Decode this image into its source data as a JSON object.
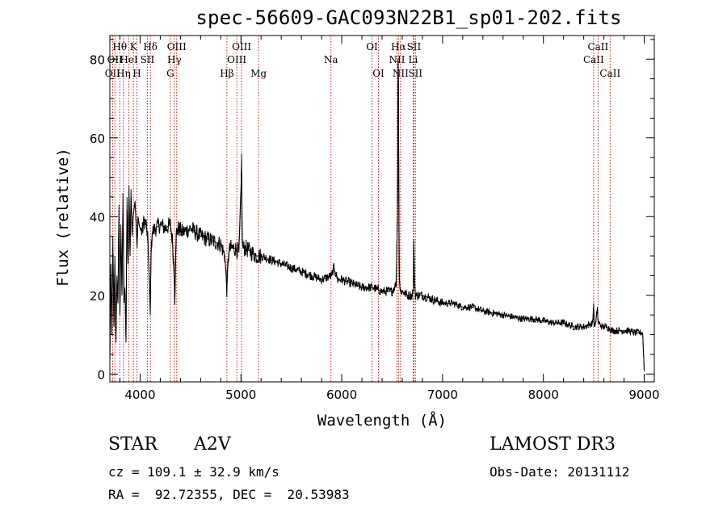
{
  "chart_data": {
    "type": "line",
    "title": "spec-56609-GAC093N22B1_sp01-202.fits",
    "xlabel": "Wavelength (Å)",
    "ylabel": "Flux (relative)",
    "xlim": [
      3700,
      9100
    ],
    "ylim": [
      -2,
      86
    ],
    "xticks": [
      4000,
      5000,
      6000,
      7000,
      8000,
      9000
    ],
    "yticks": [
      0,
      20,
      40,
      60,
      80
    ],
    "xtick_labels": [
      "4000",
      "5000",
      "6000",
      "7000",
      "8000",
      "9000"
    ],
    "ytick_labels": [
      "0",
      "20",
      "40",
      "60",
      "80"
    ],
    "series": [
      {
        "name": "flux",
        "x": [
          3700,
          3710,
          3720,
          3730,
          3740,
          3750,
          3760,
          3770,
          3780,
          3790,
          3800,
          3810,
          3820,
          3830,
          3840,
          3850,
          3860,
          3870,
          3880,
          3890,
          3900,
          3910,
          3920,
          3930,
          3940,
          3950,
          3960,
          3970,
          3980,
          3990,
          4000,
          4020,
          4040,
          4060,
          4080,
          4095,
          4101,
          4108,
          4120,
          4150,
          4200,
          4250,
          4300,
          4320,
          4340,
          4345,
          4350,
          4360,
          4380,
          4420,
          4500,
          4600,
          4700,
          4800,
          4840,
          4855,
          4861,
          4867,
          4880,
          4900,
          4940,
          4980,
          5000,
          5007,
          5012,
          5020,
          5050,
          5100,
          5150,
          5200,
          5300,
          5400,
          5500,
          5600,
          5700,
          5800,
          5900,
          5920,
          5960,
          6000,
          6100,
          6200,
          6300,
          6400,
          6500,
          6540,
          6555,
          6558,
          6562,
          6566,
          6570,
          6580,
          6600,
          6650,
          6700,
          6710,
          6716,
          6722,
          6730,
          6760,
          6800,
          6900,
          7000,
          7100,
          7200,
          7300,
          7400,
          7500,
          7600,
          7700,
          7800,
          7900,
          8000,
          8100,
          8200,
          8300,
          8400,
          8450,
          8490,
          8498,
          8505,
          8520,
          8535,
          8542,
          8550,
          8580,
          8620,
          8662,
          8680,
          8720,
          8760,
          8800,
          8850,
          8900,
          8950,
          8985,
          9000
        ],
        "y": [
          3,
          28,
          10,
          35,
          12,
          30,
          8,
          25,
          18,
          43,
          15,
          38,
          20,
          46,
          18,
          22,
          8,
          45,
          28,
          48,
          30,
          47,
          35,
          40,
          42,
          44,
          38,
          32,
          40,
          38,
          37,
          36,
          39,
          38,
          33,
          20,
          15,
          30,
          36,
          37,
          38,
          37,
          38,
          34,
          24,
          18,
          28,
          36,
          37,
          36,
          37,
          35,
          34,
          33,
          30,
          24,
          21,
          26,
          31,
          32,
          32,
          31,
          46,
          56,
          35,
          32,
          32,
          31,
          30,
          30,
          29,
          28,
          27,
          26,
          25,
          24,
          25,
          27,
          24,
          24,
          23,
          22,
          22,
          21,
          21,
          23,
          45,
          80,
          77,
          50,
          25,
          21,
          21,
          20,
          20,
          22,
          33,
          24,
          20,
          20,
          20,
          19,
          18,
          18,
          17,
          17,
          16,
          15.5,
          15,
          14.5,
          14,
          14,
          13.5,
          13,
          13,
          12,
          12,
          12.5,
          13,
          18,
          12,
          13,
          17,
          13,
          13,
          12,
          12,
          11.5,
          11,
          11,
          11,
          11,
          11,
          10.5,
          10.5,
          10.5,
          1
        ]
      }
    ],
    "lines": [
      {
        "wave": 3727,
        "label": "OII",
        "row": 3
      },
      {
        "wave": 3750,
        "label": "OII",
        "row": 2
      },
      {
        "wave": 3798,
        "label": "Hθ",
        "row": 1
      },
      {
        "wave": 3835,
        "label": "Hη",
        "row": 3
      },
      {
        "wave": 3889,
        "label": "HeI",
        "row": 2
      },
      {
        "wave": 3934,
        "label": "K",
        "row": 1
      },
      {
        "wave": 3968,
        "label": "H",
        "row": 3
      },
      {
        "wave": 4072,
        "label": "SII",
        "row": 2
      },
      {
        "wave": 4102,
        "label": "Hδ",
        "row": 1
      },
      {
        "wave": 4300,
        "label": "G",
        "row": 3
      },
      {
        "wave": 4340,
        "label": "Hγ",
        "row": 2
      },
      {
        "wave": 4363,
        "label": "OIII",
        "row": 1
      },
      {
        "wave": 4861,
        "label": "Hβ",
        "row": 3
      },
      {
        "wave": 4959,
        "label": "OIII",
        "row": 2
      },
      {
        "wave": 5007,
        "label": "OIII",
        "row": 1
      },
      {
        "wave": 5175,
        "label": "Mg",
        "row": 3
      },
      {
        "wave": 5893,
        "label": "Na",
        "row": 2
      },
      {
        "wave": 6300,
        "label": "OI",
        "row": 1
      },
      {
        "wave": 6364,
        "label": "OI",
        "row": 3
      },
      {
        "wave": 6548,
        "label": "NII",
        "row": 2
      },
      {
        "wave": 6563,
        "label": "Hα",
        "row": 1
      },
      {
        "wave": 6583,
        "label": "NII",
        "row": 3
      },
      {
        "wave": 6708,
        "label": "Li",
        "row": 2
      },
      {
        "wave": 6716,
        "label": "SII",
        "row": 1
      },
      {
        "wave": 6731,
        "label": "SII",
        "row": 3
      },
      {
        "wave": 8498,
        "label": "CaII",
        "row": 2
      },
      {
        "wave": 8542,
        "label": "CaII",
        "row": 1
      },
      {
        "wave": 8662,
        "label": "CaII",
        "row": 3
      }
    ]
  },
  "info": {
    "class_label": "STAR",
    "subclass": "A2V",
    "survey": "LAMOST DR3",
    "cz": "cz = 109.1 ± 32.9 km/s",
    "obs_date": "Obs-Date: 20131112",
    "coords": "RA =  92.72355, DEC =  20.53983"
  }
}
